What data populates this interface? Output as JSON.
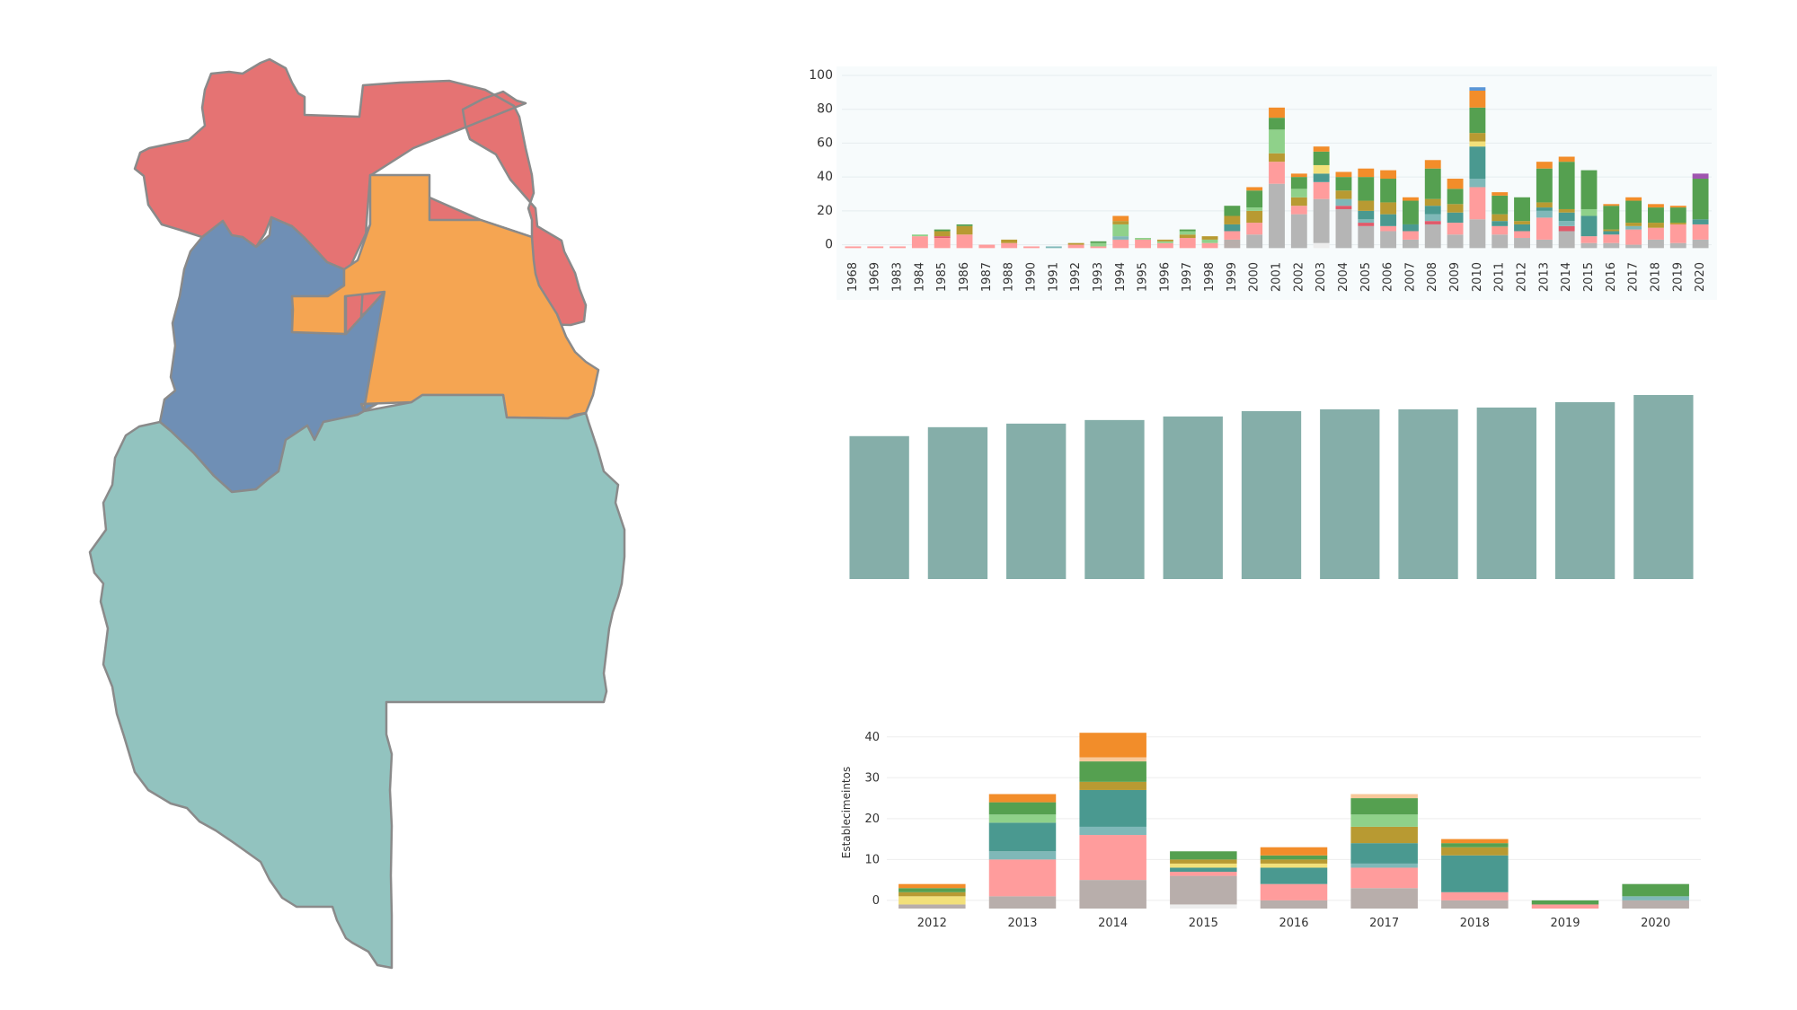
{
  "colors": {
    "map_north": "#e57373",
    "map_east": "#f5a552",
    "map_center": "#6f8fb5",
    "map_south": "#92c3bf",
    "placeholder_bar": "#85aea9",
    "segments": [
      "#ededed",
      "#b5b5b5",
      "#b8aeab",
      "#ff9c9c",
      "#e05a6a",
      "#7fb8b8",
      "#4a9990",
      "#f2e07a",
      "#b89a32",
      "#8fd18a",
      "#55a050",
      "#f28d2a",
      "#f7c89a",
      "#5a96d6",
      "#a055b0"
    ]
  },
  "map": {
    "regions": [
      {
        "name": "north",
        "color_key": "map_north"
      },
      {
        "name": "east",
        "color_key": "map_east"
      },
      {
        "name": "center",
        "color_key": "map_center"
      },
      {
        "name": "south",
        "color_key": "map_south"
      }
    ]
  },
  "chart_data": [
    {
      "type": "bar",
      "stacked": true,
      "categories": [
        "1968",
        "1969",
        "1983",
        "1984",
        "1985",
        "1986",
        "1987",
        "1988",
        "1990",
        "1991",
        "1992",
        "1993",
        "1994",
        "1995",
        "1996",
        "1997",
        "1998",
        "1999",
        "2000",
        "2001",
        "2002",
        "2003",
        "2004",
        "2005",
        "2006",
        "2007",
        "2008",
        "2009",
        "2010",
        "2011",
        "2012",
        "2013",
        "2014",
        "2015",
        "2016",
        "2017",
        "2018",
        "2019",
        "2020"
      ],
      "y_ticks": [
        0,
        20,
        40,
        60,
        80,
        100
      ],
      "ylim": [
        -5,
        100
      ],
      "grid": true,
      "segment_stacks": [
        [
          [
            3,
            1
          ]
        ],
        [
          [
            3,
            1
          ]
        ],
        [
          [
            3,
            1
          ]
        ],
        [
          [
            3,
            7
          ],
          [
            9,
            1
          ]
        ],
        [
          [
            3,
            6
          ],
          [
            4,
            1
          ],
          [
            8,
            3
          ],
          [
            10,
            1
          ]
        ],
        [
          [
            3,
            8
          ],
          [
            8,
            5
          ],
          [
            10,
            1
          ]
        ],
        [
          [
            3,
            2
          ]
        ],
        [
          [
            3,
            3
          ],
          [
            8,
            2
          ]
        ],
        [
          [
            3,
            1
          ]
        ],
        [
          [
            5,
            1
          ]
        ],
        [
          [
            3,
            2
          ],
          [
            8,
            1
          ]
        ],
        [
          [
            3,
            1
          ],
          [
            9,
            2
          ],
          [
            10,
            1
          ]
        ],
        [
          [
            3,
            5
          ],
          [
            5,
            2
          ],
          [
            9,
            7
          ],
          [
            8,
            2
          ],
          [
            11,
            3
          ]
        ],
        [
          [
            3,
            5
          ],
          [
            9,
            1
          ]
        ],
        [
          [
            3,
            3
          ],
          [
            9,
            1
          ],
          [
            8,
            1
          ]
        ],
        [
          [
            3,
            6
          ],
          [
            8,
            2
          ],
          [
            9,
            2
          ],
          [
            10,
            1
          ]
        ],
        [
          [
            3,
            3
          ],
          [
            9,
            2
          ],
          [
            8,
            2
          ]
        ],
        [
          [
            2,
            5
          ],
          [
            3,
            5
          ],
          [
            6,
            4
          ],
          [
            8,
            5
          ],
          [
            10,
            6
          ]
        ],
        [
          [
            1,
            8
          ],
          [
            3,
            7
          ],
          [
            8,
            7
          ],
          [
            9,
            2
          ],
          [
            10,
            10
          ],
          [
            11,
            2
          ]
        ],
        [
          [
            1,
            38
          ],
          [
            3,
            13
          ],
          [
            8,
            5
          ],
          [
            9,
            14
          ],
          [
            10,
            7
          ],
          [
            11,
            6
          ]
        ],
        [
          [
            1,
            20
          ],
          [
            3,
            5
          ],
          [
            8,
            5
          ],
          [
            9,
            5
          ],
          [
            10,
            7
          ],
          [
            11,
            2
          ]
        ],
        [
          [
            0,
            3
          ],
          [
            1,
            26
          ],
          [
            3,
            10
          ],
          [
            6,
            5
          ],
          [
            7,
            5
          ],
          [
            10,
            8
          ],
          [
            11,
            3
          ]
        ],
        [
          [
            1,
            23
          ],
          [
            4,
            2
          ],
          [
            5,
            4
          ],
          [
            8,
            5
          ],
          [
            10,
            8
          ],
          [
            11,
            3
          ]
        ],
        [
          [
            1,
            13
          ],
          [
            4,
            2
          ],
          [
            5,
            2
          ],
          [
            6,
            5
          ],
          [
            8,
            6
          ],
          [
            10,
            14
          ],
          [
            11,
            5
          ]
        ],
        [
          [
            1,
            10
          ],
          [
            3,
            3
          ],
          [
            6,
            7
          ],
          [
            8,
            7
          ],
          [
            10,
            14
          ],
          [
            11,
            5
          ]
        ],
        [
          [
            1,
            5
          ],
          [
            3,
            5
          ],
          [
            6,
            4
          ],
          [
            10,
            14
          ],
          [
            11,
            2
          ]
        ],
        [
          [
            1,
            14
          ],
          [
            4,
            2
          ],
          [
            5,
            4
          ],
          [
            6,
            5
          ],
          [
            8,
            4
          ],
          [
            10,
            18
          ],
          [
            11,
            5
          ]
        ],
        [
          [
            1,
            8
          ],
          [
            3,
            7
          ],
          [
            6,
            6
          ],
          [
            8,
            5
          ],
          [
            10,
            9
          ],
          [
            11,
            6
          ]
        ],
        [
          [
            1,
            17
          ],
          [
            3,
            19
          ],
          [
            5,
            5
          ],
          [
            6,
            19
          ],
          [
            7,
            3
          ],
          [
            8,
            5
          ],
          [
            10,
            15
          ],
          [
            11,
            10
          ],
          [
            13,
            2
          ]
        ],
        [
          [
            1,
            8
          ],
          [
            3,
            5
          ],
          [
            6,
            3
          ],
          [
            8,
            4
          ],
          [
            10,
            11
          ],
          [
            11,
            2
          ]
        ],
        [
          [
            1,
            6
          ],
          [
            3,
            4
          ],
          [
            6,
            4
          ],
          [
            8,
            2
          ],
          [
            10,
            14
          ]
        ],
        [
          [
            1,
            5
          ],
          [
            3,
            13
          ],
          [
            5,
            4
          ],
          [
            6,
            2
          ],
          [
            8,
            3
          ],
          [
            10,
            20
          ],
          [
            11,
            4
          ]
        ],
        [
          [
            1,
            10
          ],
          [
            4,
            3
          ],
          [
            5,
            3
          ],
          [
            6,
            5
          ],
          [
            8,
            2
          ],
          [
            10,
            28
          ],
          [
            11,
            3
          ]
        ],
        [
          [
            1,
            3
          ],
          [
            3,
            4
          ],
          [
            6,
            12
          ],
          [
            9,
            4
          ],
          [
            10,
            23
          ]
        ],
        [
          [
            1,
            3
          ],
          [
            3,
            5
          ],
          [
            6,
            2
          ],
          [
            8,
            1
          ],
          [
            10,
            14
          ],
          [
            11,
            1
          ]
        ],
        [
          [
            1,
            2
          ],
          [
            3,
            9
          ],
          [
            5,
            2
          ],
          [
            8,
            2
          ],
          [
            10,
            13
          ],
          [
            11,
            2
          ]
        ],
        [
          [
            1,
            5
          ],
          [
            3,
            7
          ],
          [
            8,
            3
          ],
          [
            10,
            9
          ],
          [
            11,
            2
          ]
        ],
        [
          [
            1,
            3
          ],
          [
            3,
            11
          ],
          [
            8,
            1
          ],
          [
            10,
            9
          ],
          [
            11,
            1
          ]
        ],
        [
          [
            1,
            5
          ],
          [
            3,
            9
          ],
          [
            6,
            3
          ],
          [
            10,
            24
          ],
          [
            14,
            3
          ]
        ]
      ]
    },
    {
      "type": "bar",
      "values": [
        80,
        85,
        87,
        89,
        91,
        94,
        95,
        95,
        96,
        99,
        103
      ],
      "ylim": [
        0,
        103
      ]
    },
    {
      "type": "bar",
      "stacked": true,
      "categories": [
        "2012",
        "2013",
        "2014",
        "2015",
        "2016",
        "2017",
        "2018",
        "2019",
        "2020"
      ],
      "ylabel": "Establecimeintos",
      "y_ticks": [
        0,
        10,
        20,
        30,
        40
      ],
      "ylim": [
        -2,
        45
      ],
      "grid": true,
      "segment_stacks": [
        [
          [
            2,
            1
          ],
          [
            7,
            2
          ],
          [
            8,
            1
          ],
          [
            10,
            1
          ],
          [
            11,
            1
          ]
        ],
        [
          [
            2,
            3
          ],
          [
            3,
            9
          ],
          [
            5,
            2
          ],
          [
            6,
            7
          ],
          [
            9,
            2
          ],
          [
            10,
            3
          ],
          [
            11,
            2
          ]
        ],
        [
          [
            2,
            7
          ],
          [
            3,
            11
          ],
          [
            5,
            2
          ],
          [
            6,
            9
          ],
          [
            8,
            2
          ],
          [
            10,
            5
          ],
          [
            12,
            1
          ],
          [
            11,
            6
          ]
        ],
        [
          [
            0,
            1
          ],
          [
            2,
            7
          ],
          [
            3,
            1
          ],
          [
            6,
            1
          ],
          [
            7,
            1
          ],
          [
            8,
            1
          ],
          [
            10,
            2
          ]
        ],
        [
          [
            2,
            2
          ],
          [
            3,
            4
          ],
          [
            6,
            4
          ],
          [
            7,
            1
          ],
          [
            8,
            1
          ],
          [
            10,
            1
          ],
          [
            11,
            2
          ]
        ],
        [
          [
            2,
            5
          ],
          [
            3,
            5
          ],
          [
            5,
            1
          ],
          [
            6,
            5
          ],
          [
            8,
            4
          ],
          [
            9,
            3
          ],
          [
            10,
            4
          ],
          [
            12,
            1
          ]
        ],
        [
          [
            2,
            2
          ],
          [
            3,
            2
          ],
          [
            6,
            9
          ],
          [
            8,
            2
          ],
          [
            10,
            1
          ],
          [
            11,
            1
          ]
        ],
        [
          [
            3,
            1
          ],
          [
            10,
            1
          ]
        ],
        [
          [
            2,
            2
          ],
          [
            5,
            1
          ],
          [
            10,
            3
          ]
        ]
      ]
    }
  ]
}
